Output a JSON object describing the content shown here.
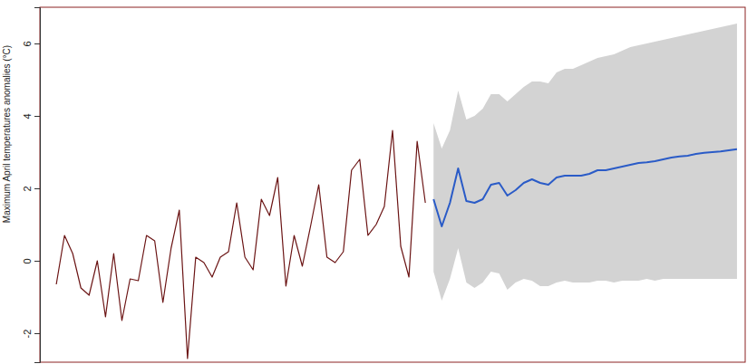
{
  "chart_data": {
    "type": "line",
    "y_label": "Maximum April temperatures anomalies (°C)",
    "xlim": [
      -1,
      85
    ],
    "ylim": [
      -2.8,
      7.0
    ],
    "yticks": [
      -2,
      0,
      2,
      4,
      6
    ],
    "tick_labels": "y",
    "grid": false,
    "series": [
      {
        "type": "area",
        "color": "#d3d3d3",
        "x": [
          47,
          48,
          49,
          50,
          51,
          52,
          53,
          54,
          55,
          56,
          57,
          58,
          59,
          60,
          61,
          62,
          63,
          64,
          65,
          66,
          67,
          68,
          69,
          70,
          71,
          72,
          73,
          74,
          75,
          76,
          77,
          78,
          79,
          80,
          81,
          82,
          83,
          84
        ],
        "lower": [
          -0.3,
          -1.1,
          -0.5,
          0.35,
          -0.6,
          -0.75,
          -0.6,
          -0.3,
          -0.35,
          -0.8,
          -0.6,
          -0.5,
          -0.55,
          -0.7,
          -0.7,
          -0.6,
          -0.55,
          -0.6,
          -0.6,
          -0.6,
          -0.55,
          -0.55,
          -0.6,
          -0.55,
          -0.55,
          -0.55,
          -0.5,
          -0.55,
          -0.5,
          -0.5,
          -0.5,
          -0.5,
          -0.5,
          -0.5,
          -0.5,
          -0.5,
          -0.5,
          -0.5
        ],
        "upper": [
          3.8,
          3.1,
          3.6,
          4.7,
          3.9,
          4.0,
          4.2,
          4.6,
          4.6,
          4.4,
          4.6,
          4.8,
          4.95,
          4.95,
          4.9,
          5.2,
          5.3,
          5.3,
          5.4,
          5.5,
          5.6,
          5.65,
          5.7,
          5.8,
          5.9,
          5.95,
          6.0,
          6.05,
          6.1,
          6.15,
          6.2,
          6.25,
          6.3,
          6.35,
          6.4,
          6.45,
          6.5,
          6.55
        ]
      },
      {
        "type": "line",
        "color": "#6b1414",
        "x": [
          1,
          2,
          3,
          4,
          5,
          6,
          7,
          8,
          9,
          10,
          11,
          12,
          13,
          14,
          15,
          16,
          17,
          18,
          19,
          20,
          21,
          22,
          23,
          24,
          25,
          26,
          27,
          28,
          29,
          30,
          31,
          32,
          33,
          34,
          35,
          36,
          37,
          38,
          39,
          40,
          41,
          42,
          43,
          44,
          45,
          46
        ],
        "values": [
          -0.65,
          0.7,
          0.2,
          -0.75,
          -0.95,
          0.0,
          -1.55,
          0.2,
          -1.65,
          -0.5,
          -0.55,
          0.7,
          0.55,
          -1.15,
          0.35,
          1.4,
          -2.7,
          0.1,
          -0.05,
          -0.45,
          0.1,
          0.25,
          1.6,
          0.1,
          -0.25,
          1.7,
          1.25,
          2.3,
          -0.7,
          0.7,
          -0.15,
          0.95,
          2.1,
          0.1,
          -0.05,
          0.25,
          2.5,
          2.8,
          0.7,
          1.0,
          1.5,
          3.6,
          0.4,
          -0.45,
          3.3,
          1.6
        ]
      },
      {
        "type": "line",
        "color": "#2a5bc7",
        "x": [
          47,
          48,
          49,
          50,
          51,
          52,
          53,
          54,
          55,
          56,
          57,
          58,
          59,
          60,
          61,
          62,
          63,
          64,
          65,
          66,
          67,
          68,
          69,
          70,
          71,
          72,
          73,
          74,
          75,
          76,
          77,
          78,
          79,
          80,
          81,
          82,
          83,
          84
        ],
        "values": [
          1.7,
          0.95,
          1.6,
          2.55,
          1.65,
          1.6,
          1.7,
          2.1,
          2.15,
          1.8,
          1.95,
          2.15,
          2.25,
          2.15,
          2.1,
          2.3,
          2.35,
          2.35,
          2.35,
          2.4,
          2.5,
          2.5,
          2.55,
          2.6,
          2.65,
          2.7,
          2.72,
          2.75,
          2.8,
          2.85,
          2.88,
          2.9,
          2.95,
          2.98,
          3.0,
          3.02,
          3.05,
          3.08
        ]
      }
    ]
  }
}
